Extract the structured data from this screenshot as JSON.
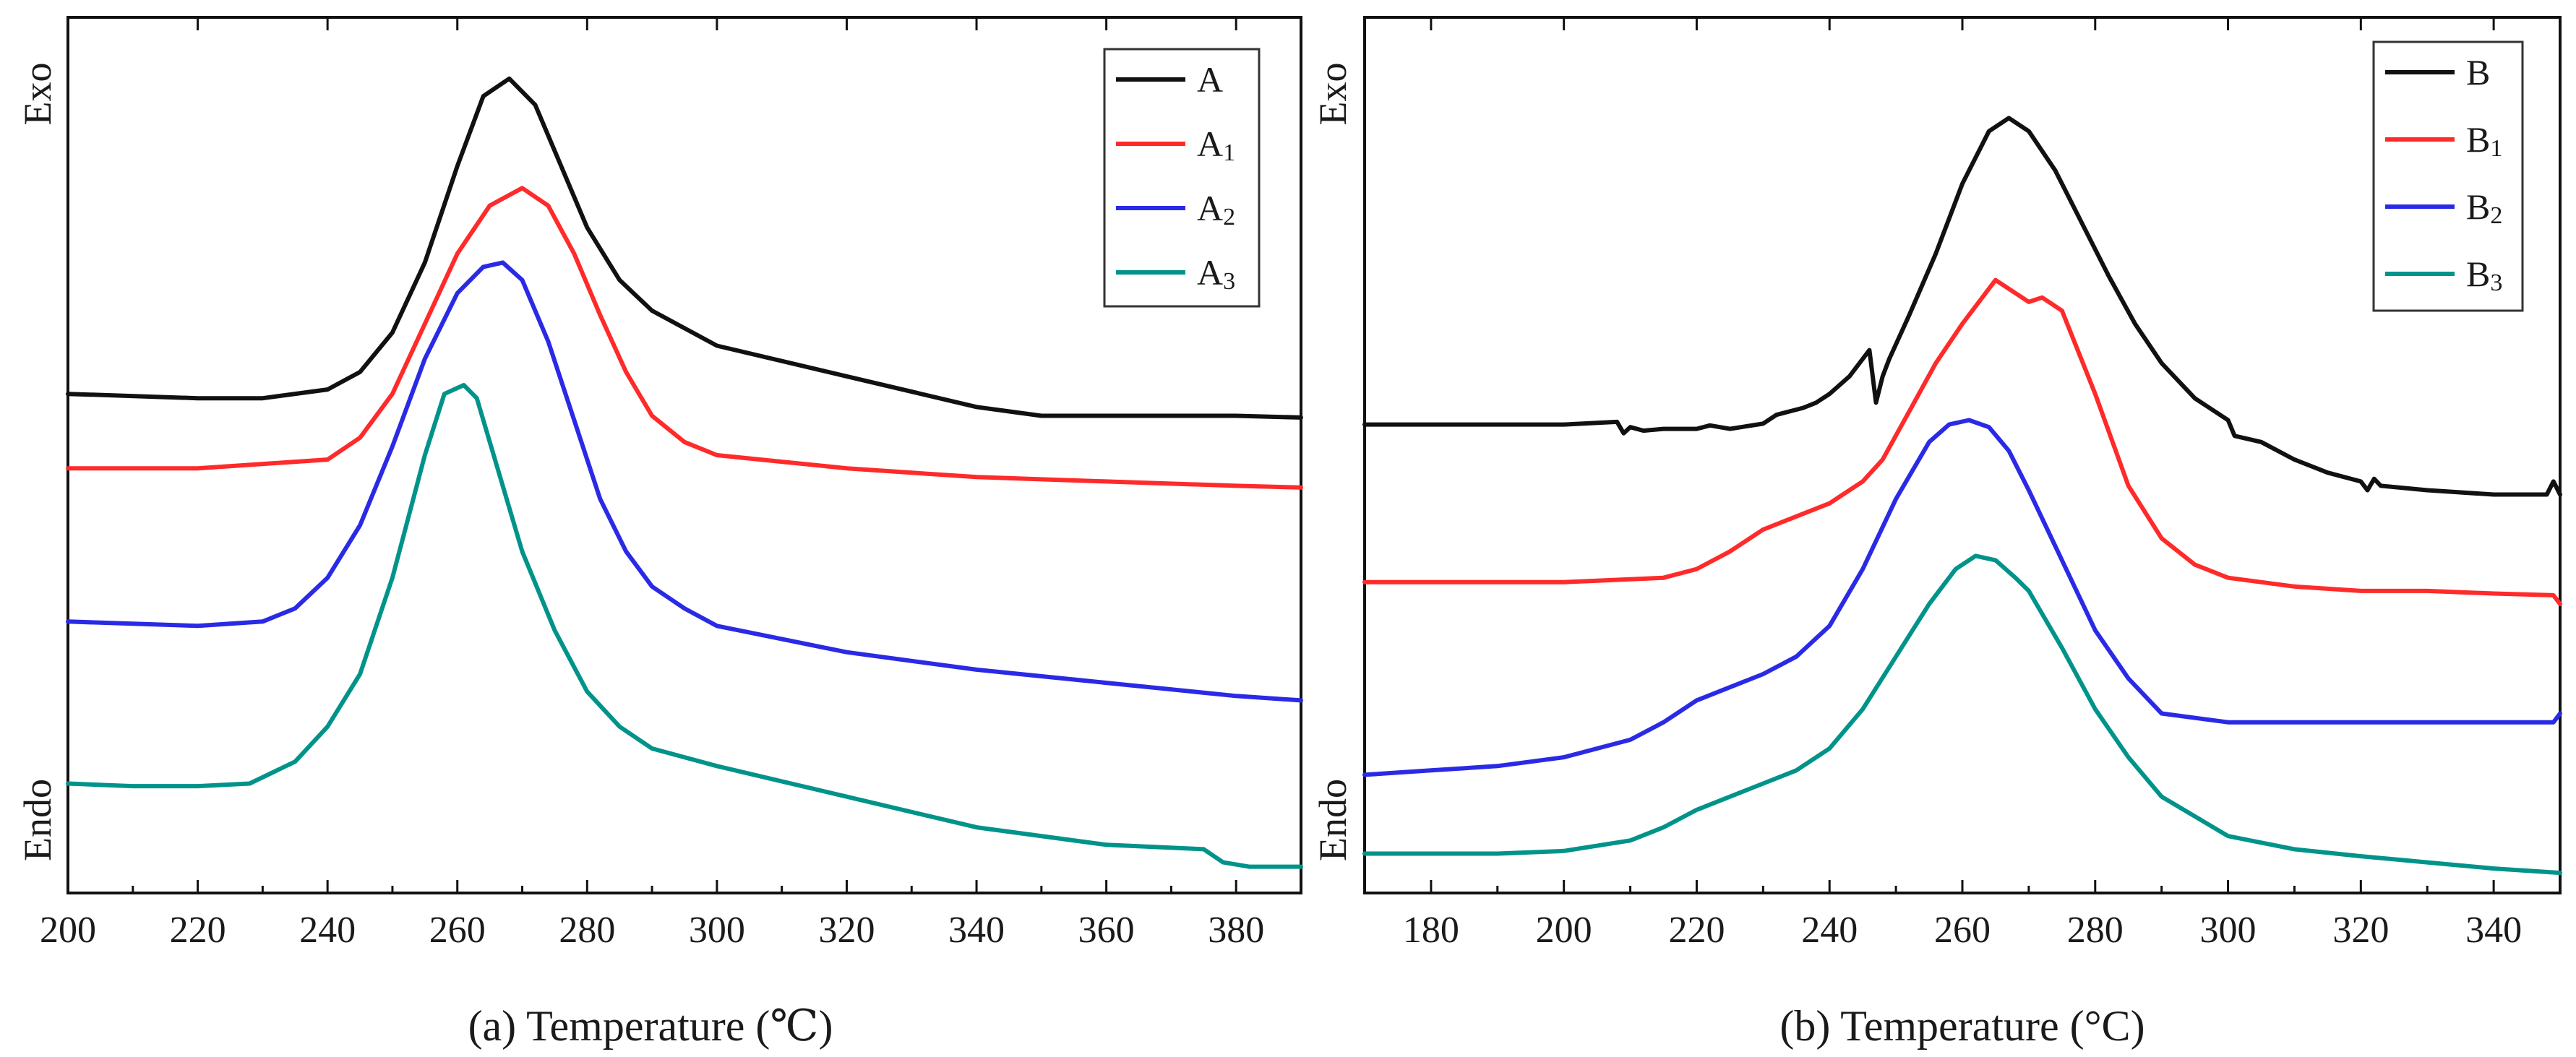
{
  "figure": {
    "colors": {
      "black": "#111111",
      "red": "#ff2a2a",
      "blue": "#2a2ae6",
      "teal": "#00938a"
    }
  },
  "chart_data": [
    {
      "type": "line",
      "panel": "a",
      "xlabel": "(a) Temperature (℃)",
      "ylabel_top": "Exo",
      "ylabel_bottom": "Endo",
      "xlim": [
        200,
        390
      ],
      "ylim": [
        0,
        100
      ],
      "xticks": [
        200,
        220,
        240,
        260,
        280,
        300,
        320,
        340,
        360,
        380
      ],
      "yticks_shown": false,
      "legend_position": "top-right",
      "series": [
        {
          "name": "A",
          "label": "A",
          "sub": "",
          "color": "#111111",
          "x": [
            200,
            220,
            230,
            240,
            245,
            250,
            255,
            260,
            264,
            268,
            272,
            276,
            280,
            285,
            290,
            300,
            320,
            340,
            350,
            360,
            380,
            390
          ],
          "y": [
            57,
            56.5,
            56.5,
            57.5,
            59.5,
            64,
            72,
            83,
            91,
            93,
            90,
            83,
            76,
            70,
            66.5,
            62.5,
            59,
            55.5,
            54.5,
            54.5,
            54.5,
            54.3
          ]
        },
        {
          "name": "A1",
          "label": "A",
          "sub": "1",
          "color": "#ff2a2a",
          "x": [
            200,
            220,
            240,
            245,
            250,
            255,
            260,
            265,
            270,
            274,
            278,
            282,
            286,
            290,
            295,
            300,
            320,
            340,
            360,
            380,
            390
          ],
          "y": [
            48.5,
            48.5,
            49.5,
            52,
            57,
            65,
            73,
            78.5,
            80.5,
            78.5,
            73,
            66,
            59.5,
            54.5,
            51.5,
            50,
            48.5,
            47.5,
            47,
            46.5,
            46.3
          ]
        },
        {
          "name": "A2",
          "label": "A",
          "sub": "2",
          "color": "#2a2ae6",
          "x": [
            200,
            220,
            230,
            235,
            240,
            245,
            250,
            255,
            260,
            264,
            267,
            270,
            274,
            278,
            282,
            286,
            290,
            295,
            300,
            320,
            340,
            360,
            380,
            390
          ],
          "y": [
            31,
            30.5,
            31,
            32.5,
            36,
            42,
            51,
            61,
            68.5,
            71.5,
            72,
            70,
            63,
            54,
            45,
            39,
            35,
            32.5,
            30.5,
            27.5,
            25.5,
            24,
            22.5,
            22
          ]
        },
        {
          "name": "A3",
          "label": "A",
          "sub": "3",
          "color": "#00938a",
          "x": [
            200,
            210,
            220,
            228,
            235,
            240,
            245,
            250,
            255,
            258,
            261,
            263,
            266,
            270,
            275,
            280,
            285,
            290,
            300,
            320,
            340,
            360,
            375,
            378,
            382,
            390
          ],
          "y": [
            12.5,
            12.2,
            12.2,
            12.5,
            15,
            19,
            25,
            36,
            50,
            57,
            58,
            56.5,
            49,
            39,
            30,
            23,
            19,
            16.5,
            14.5,
            11,
            7.5,
            5.5,
            5,
            3.5,
            3,
            3
          ]
        }
      ]
    },
    {
      "type": "line",
      "panel": "b",
      "xlabel": "(b) Temperature (°C)",
      "ylabel_top": "Exo",
      "ylabel_bottom": "Endo",
      "xlim": [
        170,
        350
      ],
      "ylim": [
        0,
        100
      ],
      "xticks": [
        180,
        200,
        220,
        240,
        260,
        280,
        300,
        320,
        340
      ],
      "yticks_shown": false,
      "legend_position": "top-right",
      "series": [
        {
          "name": "B",
          "label": "B",
          "sub": "",
          "color": "#111111",
          "x": [
            170,
            200,
            208,
            209,
            210,
            212,
            215,
            220,
            222,
            225,
            230,
            232,
            234,
            236,
            238,
            240,
            243,
            246,
            247,
            248,
            249,
            252,
            256,
            260,
            264,
            267,
            270,
            274,
            278,
            282,
            286,
            290,
            295,
            300,
            301,
            305,
            310,
            315,
            320,
            321,
            322,
            323,
            330,
            340,
            348,
            349,
            350
          ],
          "y": [
            53.5,
            53.5,
            53.8,
            52.5,
            53.2,
            52.8,
            53,
            53,
            53.4,
            53,
            53.6,
            54.6,
            55,
            55.4,
            56,
            57,
            59,
            62,
            56,
            59,
            61,
            66,
            73,
            81,
            87,
            88.5,
            87,
            82.5,
            76.5,
            70.5,
            65,
            60.5,
            56.5,
            54,
            52.2,
            51.5,
            49.5,
            48,
            47,
            46,
            47.3,
            46.5,
            46,
            45.5,
            45.5,
            47,
            45.5
          ]
        },
        {
          "name": "B1",
          "label": "B",
          "sub": "1",
          "color": "#ff2a2a",
          "x": [
            170,
            200,
            215,
            220,
            225,
            230,
            235,
            240,
            245,
            248,
            252,
            256,
            260,
            265,
            270,
            272,
            275,
            280,
            285,
            290,
            295,
            300,
            310,
            320,
            330,
            340,
            349,
            350
          ],
          "y": [
            35.5,
            35.5,
            36,
            37,
            39,
            41.5,
            43,
            44.5,
            47,
            49.5,
            55,
            60.5,
            65,
            70,
            67.5,
            68,
            66.5,
            57,
            46.5,
            40.5,
            37.5,
            36,
            35,
            34.5,
            34.5,
            34.2,
            34,
            33
          ]
        },
        {
          "name": "B2",
          "label": "B",
          "sub": "2",
          "color": "#2a2ae6",
          "x": [
            170,
            180,
            190,
            200,
            210,
            215,
            220,
            230,
            235,
            240,
            245,
            250,
            255,
            258,
            261,
            264,
            267,
            270,
            275,
            280,
            285,
            290,
            300,
            310,
            320,
            330,
            340,
            349,
            350
          ],
          "y": [
            13.5,
            14,
            14.5,
            15.5,
            17.5,
            19.5,
            22,
            25,
            27,
            30.5,
            37,
            45,
            51.5,
            53.5,
            54,
            53.2,
            50.5,
            46,
            38,
            30,
            24.5,
            20.5,
            19.5,
            19.5,
            19.5,
            19.5,
            19.5,
            19.5,
            20.5
          ]
        },
        {
          "name": "B3",
          "label": "B",
          "sub": "3",
          "color": "#00938a",
          "x": [
            170,
            190,
            200,
            210,
            215,
            220,
            225,
            230,
            235,
            240,
            245,
            250,
            255,
            259,
            262,
            265,
            268,
            270,
            275,
            280,
            285,
            290,
            300,
            310,
            320,
            330,
            340,
            350
          ],
          "y": [
            4.5,
            4.5,
            4.8,
            6,
            7.5,
            9.5,
            11,
            12.5,
            14,
            16.5,
            21,
            27,
            33,
            37,
            38.5,
            38,
            36,
            34.5,
            28,
            21,
            15.5,
            11,
            6.5,
            5,
            4.2,
            3.5,
            2.8,
            2.3
          ]
        }
      ]
    }
  ]
}
